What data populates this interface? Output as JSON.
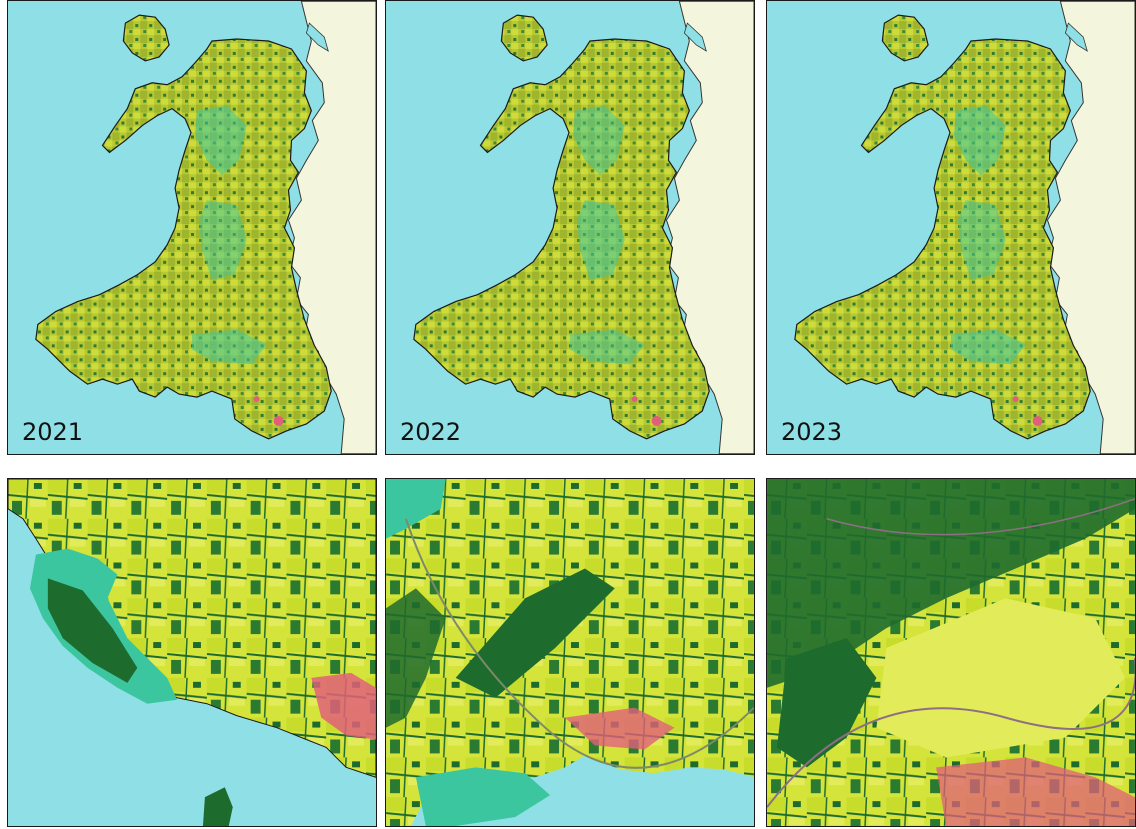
{
  "figure": {
    "maps": [
      {
        "year_label": "2021"
      },
      {
        "year_label": "2022"
      },
      {
        "year_label": "2023"
      }
    ],
    "zoom_panels": 3
  },
  "colors": {
    "sea": "#8fe0e6",
    "england": "#f3f6dc",
    "grassland": "#d4e43a",
    "woodland": "#1e6b2e",
    "upland": "#3cc6a0",
    "urban": "#e0607a",
    "water": "#3a8fd0"
  }
}
